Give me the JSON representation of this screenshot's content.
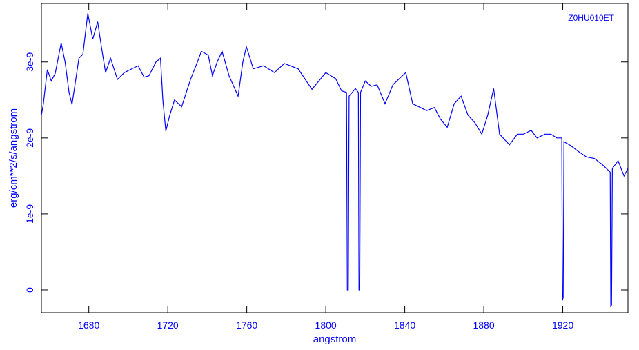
{
  "chart_data": {
    "type": "line",
    "annotation": "Z0HU010ET",
    "x_label": "angstrom",
    "y_label": "erg/cm**2/s/angstrom",
    "color": "#0000ff",
    "xlim": [
      1656,
      1953
    ],
    "ylim": [
      -3e-10,
      3.77e-09
    ],
    "xticks": [
      1680,
      1720,
      1760,
      1800,
      1840,
      1880,
      1920
    ],
    "yticks": [
      0,
      1e-09,
      2e-09,
      3e-09
    ],
    "x": [
      1656,
      1657,
      1659,
      1661,
      1663,
      1666,
      1668,
      1670,
      1671.5,
      1673,
      1675,
      1677,
      1679.5,
      1682,
      1684.5,
      1686.5,
      1688.5,
      1691,
      1694.5,
      1698,
      1701,
      1705,
      1708,
      1710.5,
      1714,
      1716.3,
      1717.5,
      1719,
      1721,
      1723.4,
      1727,
      1731.5,
      1735,
      1737,
      1740.5,
      1742.6,
      1745,
      1747.5,
      1751,
      1755.6,
      1758,
      1759.8,
      1763.3,
      1768.5,
      1774,
      1779,
      1786,
      1793,
      1800,
      1805,
      1808,
      1810.5,
      1810.9,
      1811.4,
      1811.8,
      1815,
      1816.5,
      1816.8,
      1817.2,
      1817.6,
      1820,
      1823,
      1826,
      1830,
      1834,
      1838,
      1840.5,
      1844,
      1848,
      1851,
      1855,
      1858,
      1861.5,
      1865,
      1868.5,
      1872,
      1875.5,
      1879,
      1882,
      1885,
      1888,
      1893,
      1897,
      1900,
      1904,
      1907,
      1911,
      1914,
      1917,
      1919.5,
      1919.8,
      1920.2,
      1920.6,
      1924,
      1928,
      1932,
      1936,
      1940,
      1944,
      1944.3,
      1944.7,
      1945.1,
      1948,
      1951,
      1953
    ],
    "values": [
      2.3e-09,
      2.45e-09,
      2.9e-09,
      2.75e-09,
      2.85e-09,
      3.25e-09,
      3e-09,
      2.6e-09,
      2.44e-09,
      2.7e-09,
      3.05e-09,
      3.1e-09,
      3.64e-09,
      3.3e-09,
      3.53e-09,
      3.18e-09,
      2.86e-09,
      3.05e-09,
      2.77e-09,
      2.86e-09,
      2.9e-09,
      2.95e-09,
      2.8e-09,
      2.82e-09,
      3e-09,
      3.05e-09,
      2.5e-09,
      2.09e-09,
      2.3e-09,
      2.5e-09,
      2.41e-09,
      2.77e-09,
      3e-09,
      3.14e-09,
      3.09e-09,
      2.82e-09,
      3e-09,
      3.14e-09,
      2.82e-09,
      2.55e-09,
      3e-09,
      3.2e-09,
      2.91e-09,
      2.95e-09,
      2.86e-09,
      2.98e-09,
      2.91e-09,
      2.64e-09,
      2.86e-09,
      2.78e-09,
      2.62e-09,
      2.6e-09,
      0,
      0,
      2.55e-09,
      2.65e-09,
      2.6e-09,
      0,
      0,
      2.6e-09,
      2.75e-09,
      2.68e-09,
      2.7e-09,
      2.45e-09,
      2.7e-09,
      2.8e-09,
      2.86e-09,
      2.45e-09,
      2.4e-09,
      2.36e-09,
      2.4e-09,
      2.25e-09,
      2.14e-09,
      2.45e-09,
      2.55e-09,
      2.3e-09,
      2.2e-09,
      2.05e-09,
      2.3e-09,
      2.65e-09,
      2.05e-09,
      1.91e-09,
      2.05e-09,
      2.05e-09,
      2.1e-09,
      2e-09,
      2.05e-09,
      2.05e-09,
      2e-09,
      2e-09,
      -1.4e-10,
      -1e-10,
      1.95e-09,
      1.9e-09,
      1.82e-09,
      1.75e-09,
      1.73e-09,
      1.65e-09,
      1.55e-09,
      -2.1e-10,
      -2e-10,
      1.6e-09,
      1.7e-09,
      1.5e-09,
      1.6e-09
    ]
  }
}
